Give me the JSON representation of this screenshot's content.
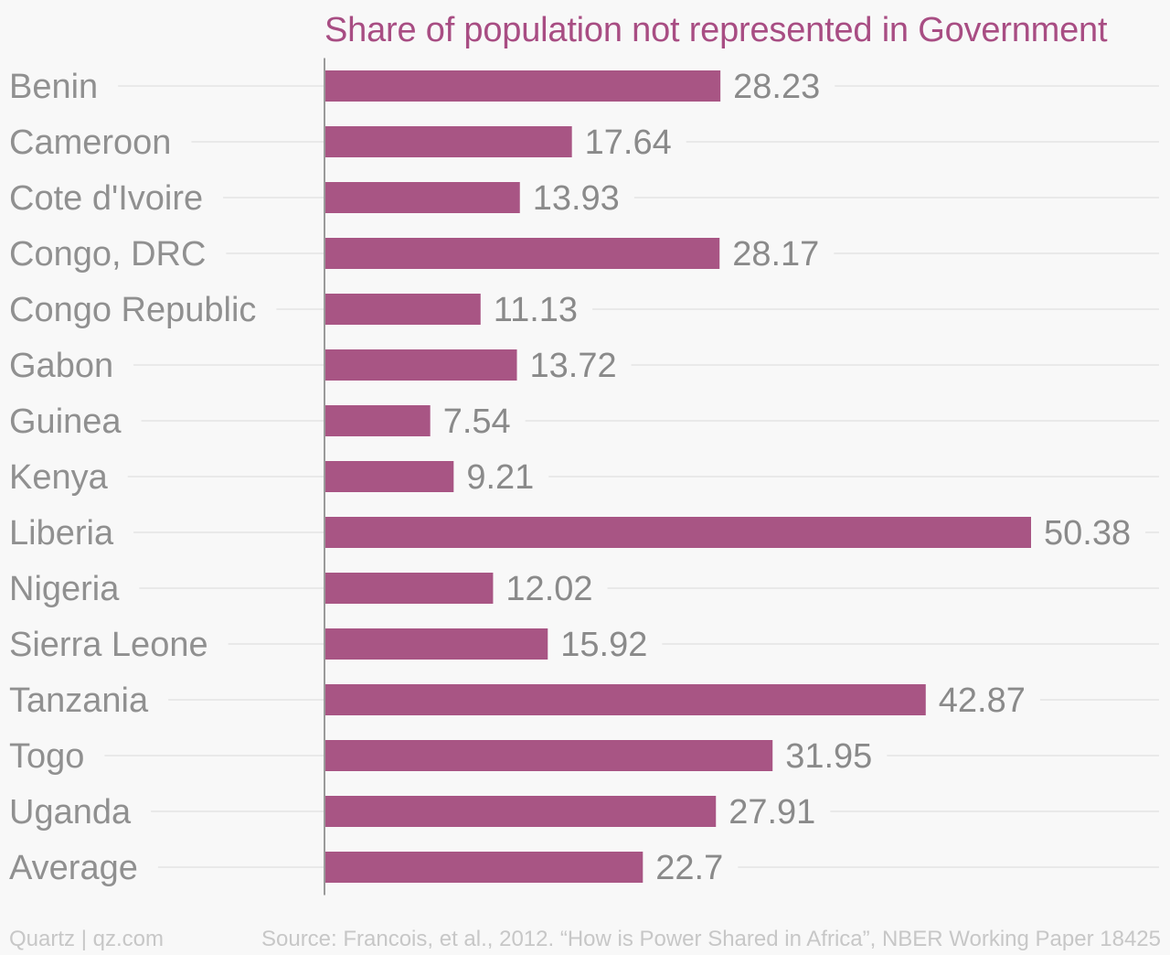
{
  "chart_data": {
    "type": "bar",
    "orientation": "horizontal",
    "title": "Share of population not represented in Government",
    "categories": [
      "Benin",
      "Cameroon",
      "Cote d'Ivoire",
      "Congo, DRC",
      "Congo Republic",
      "Gabon",
      "Guinea",
      "Kenya",
      "Liberia",
      "Nigeria",
      "Sierra Leone",
      "Tanzania",
      "Togo",
      "Uganda",
      "Average"
    ],
    "values": [
      28.23,
      17.64,
      13.93,
      28.17,
      11.13,
      13.72,
      7.54,
      9.21,
      50.38,
      12.02,
      15.92,
      42.87,
      31.95,
      27.91,
      22.7
    ],
    "value_labels": [
      "28.23",
      "17.64",
      "13.93",
      "28.17",
      "11.13",
      "13.72",
      "7.54",
      "9.21",
      "50.38",
      "12.02",
      "15.92",
      "42.87",
      "31.95",
      "27.91",
      "22.7"
    ],
    "xlim": [
      0,
      50.38
    ],
    "xlabel": "",
    "ylabel": "",
    "grid": "horizontal",
    "colors": {
      "bar": "#a85584",
      "title": "#a84d83",
      "category_label": "#909090",
      "value_label": "#8a8a8a",
      "gridline": "#e4e4e4",
      "axis": "#9a9a9a",
      "background": "#f8f8f8"
    }
  },
  "footer": {
    "brand": "Quartz | qz.com",
    "source": "Source: Francois, et al., 2012. “How is Power Shared in Africa”, NBER Working Paper 18425"
  }
}
